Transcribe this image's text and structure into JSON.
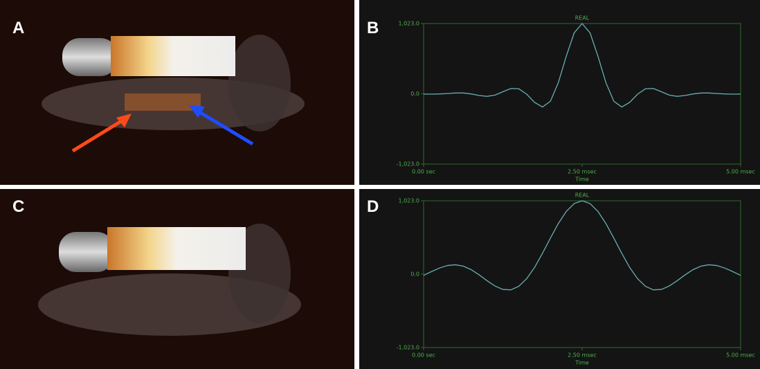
{
  "panels": {
    "a": "A",
    "b": "B",
    "c": "C",
    "d": "D"
  },
  "chart_data": [
    {
      "type": "line",
      "title": "REAL",
      "x_label": "Time",
      "x": [
        0,
        0.125,
        0.25,
        0.375,
        0.5,
        0.625,
        0.75,
        0.875,
        1,
        1.125,
        1.25,
        1.375,
        1.5,
        1.625,
        1.75,
        1.875,
        2,
        2.125,
        2.25,
        2.375,
        2.5,
        2.625,
        2.75,
        2.875,
        3,
        3.125,
        3.25,
        3.375,
        3.5,
        3.625,
        3.75,
        3.875,
        4,
        4.125,
        4.25,
        4.375,
        4.5,
        4.625,
        4.75,
        4.875,
        5
      ],
      "series": [
        {
          "color": "#6aaeb0",
          "values": [
            -4,
            -5,
            -2,
            4,
            12,
            12,
            -2,
            -24,
            -37,
            -19,
            30,
            77,
            74,
            -5,
            -124,
            -192,
            -108,
            163,
            547,
            887,
            1023,
            887,
            547,
            163,
            -108,
            -192,
            -124,
            -5,
            74,
            77,
            30,
            -19,
            -37,
            -24,
            -2,
            12,
            12,
            4,
            -2,
            -5,
            -4
          ]
        }
      ],
      "xlim": [
        0,
        5
      ],
      "xticks": [
        {
          "value": 0,
          "label": "0.00 sec"
        },
        {
          "value": 2.5,
          "label": "2.50 msec"
        },
        {
          "value": 5,
          "label": "5.00 msec"
        }
      ],
      "ylim": [
        -1023,
        1023
      ],
      "yticks": [
        {
          "value": -1023,
          "label": "-1,023.0"
        },
        {
          "value": 0,
          "label": "0.0"
        },
        {
          "value": 1023,
          "label": "1,023.0"
        }
      ]
    },
    {
      "type": "line",
      "title": "REAL",
      "x_label": "Time",
      "x": [
        0,
        0.125,
        0.25,
        0.375,
        0.5,
        0.625,
        0.75,
        0.875,
        1,
        1.125,
        1.25,
        1.375,
        1.5,
        1.625,
        1.75,
        1.875,
        2,
        2.125,
        2.25,
        2.375,
        2.5,
        2.625,
        2.75,
        2.875,
        3,
        3.125,
        3.25,
        3.375,
        3.5,
        3.625,
        3.75,
        3.875,
        4,
        4.125,
        4.25,
        4.375,
        4.5,
        4.625,
        4.75,
        4.875,
        5
      ],
      "series": [
        {
          "color": "#6aaeb0",
          "values": [
            -16,
            36,
            85,
            120,
            131,
            112,
            63,
            -9,
            -91,
            -165,
            -213,
            -219,
            -170,
            -64,
            94,
            291,
            502,
            706,
            874,
            984,
            1023,
            984,
            874,
            706,
            502,
            291,
            94,
            -64,
            -170,
            -219,
            -213,
            -165,
            -91,
            -9,
            63,
            112,
            131,
            120,
            85,
            36,
            -16
          ]
        }
      ],
      "xlim": [
        0,
        5
      ],
      "xticks": [
        {
          "value": 0,
          "label": "0.00 sec"
        },
        {
          "value": 2.5,
          "label": "2.50 msec"
        },
        {
          "value": 5,
          "label": "5.00 msec"
        }
      ],
      "ylim": [
        -1023,
        1023
      ],
      "yticks": [
        {
          "value": -1023,
          "label": "-1,023.0"
        },
        {
          "value": 0,
          "label": "0.0"
        },
        {
          "value": 1023,
          "label": "1,023.0"
        }
      ]
    }
  ]
}
